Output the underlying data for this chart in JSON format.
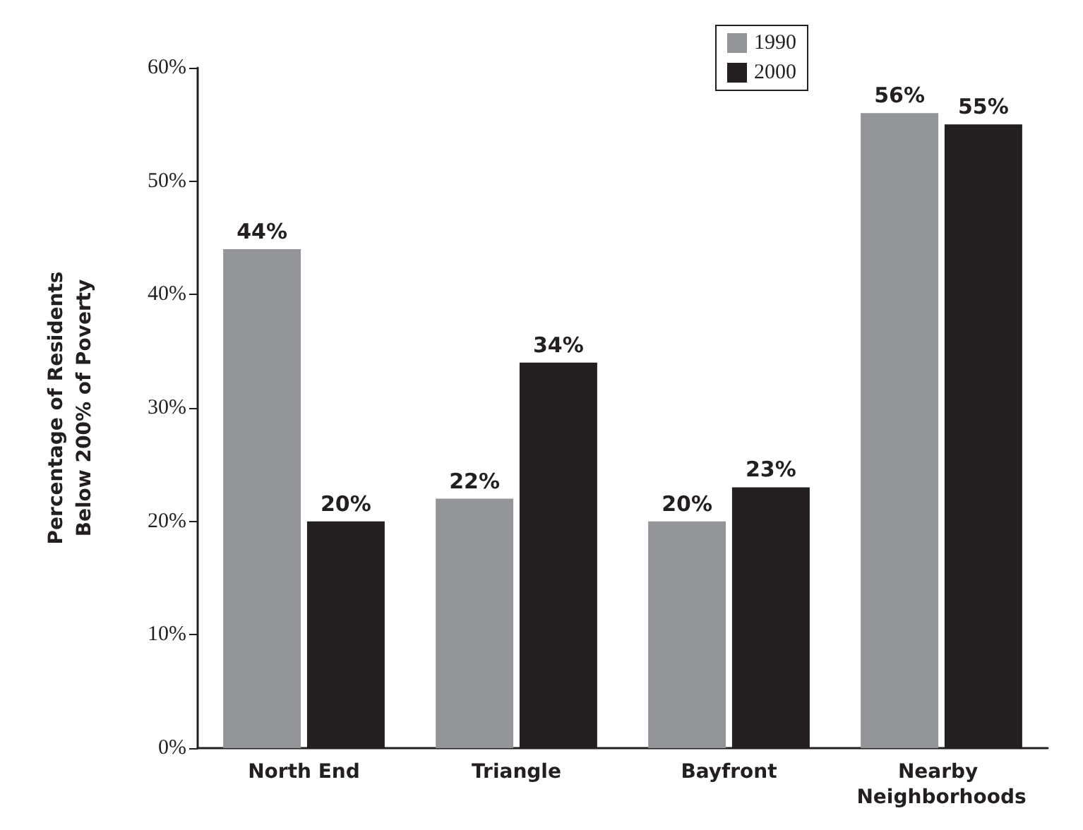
{
  "chart_data": {
    "type": "bar",
    "ylabel": "Percentage of Residents\nBelow 200% of Poverty",
    "categories": [
      "North End",
      "Triangle",
      "Bayfront",
      "Nearby Neighborhoods"
    ],
    "series": [
      {
        "name": "1990",
        "color": "#939598",
        "values": [
          44,
          22,
          20,
          56
        ],
        "value_labels": [
          "44%",
          "22%",
          "20%",
          "56%"
        ]
      },
      {
        "name": "2000",
        "color": "#231f20",
        "values": [
          20,
          34,
          23,
          55
        ],
        "value_labels": [
          "20%",
          "34%",
          "23%",
          "55%"
        ]
      }
    ],
    "ylim": [
      0,
      60
    ],
    "yticks": [
      {
        "value": 0,
        "label": "0%"
      },
      {
        "value": 10,
        "label": "10%"
      },
      {
        "value": 20,
        "label": "20%"
      },
      {
        "value": 30,
        "label": "30%"
      },
      {
        "value": 40,
        "label": "40%"
      },
      {
        "value": 50,
        "label": "50%"
      },
      {
        "value": 60,
        "label": "60%"
      }
    ],
    "grid": false,
    "legend": "top right"
  }
}
